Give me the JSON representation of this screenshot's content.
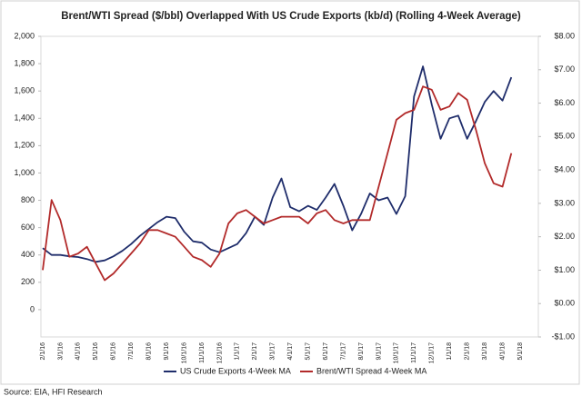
{
  "chart_data": {
    "type": "line",
    "title": "Brent/WTI Spread ($/bbl) Overlapped With US Crude Exports (kb/d) (Rolling 4-Week Average)",
    "source": "Source: EIA, HFI Research",
    "categories": [
      "2/1/16",
      null,
      "3/1/16",
      null,
      "4/1/16",
      null,
      "5/1/16",
      null,
      "6/1/16",
      null,
      "7/1/16",
      null,
      "8/1/16",
      null,
      "9/1/16",
      null,
      "10/1/16",
      null,
      "11/1/16",
      null,
      "12/1/16",
      null,
      "1/1/17",
      null,
      "2/1/17",
      null,
      "3/1/17",
      null,
      "4/1/17",
      null,
      "5/1/17",
      null,
      "6/1/17",
      null,
      "7/1/17",
      null,
      "8/1/17",
      null,
      "9/1/17",
      null,
      "10/1/17",
      null,
      "11/1/17",
      null,
      "12/1/17",
      null,
      "1/1/18",
      null,
      "2/1/18",
      null,
      "3/1/18",
      null,
      "4/1/18",
      null,
      "5/1/18"
    ],
    "series": [
      {
        "name": "US Crude Exports 4-Week MA",
        "color": "#1f2d6b",
        "axis": "y",
        "values": [
          450,
          400,
          400,
          390,
          385,
          370,
          350,
          360,
          390,
          430,
          480,
          540,
          590,
          640,
          680,
          670,
          570,
          500,
          490,
          440,
          420,
          450,
          480,
          560,
          680,
          620,
          820,
          960,
          750,
          720,
          760,
          730,
          820,
          920,
          760,
          580,
          700,
          850,
          800,
          820,
          700,
          830,
          1560,
          1780,
          1500,
          1250,
          1400,
          1420,
          1250,
          1380,
          1520,
          1600,
          1530,
          1700,
          null
        ]
      },
      {
        "name": "Brent/WTI Spread 4-Week MA",
        "color": "#b22a2a",
        "axis": "y2",
        "values": [
          1.0,
          3.1,
          2.5,
          1.4,
          1.5,
          1.7,
          1.2,
          0.7,
          0.9,
          1.2,
          1.5,
          1.8,
          2.2,
          2.2,
          2.1,
          2.0,
          1.7,
          1.4,
          1.3,
          1.1,
          1.5,
          2.4,
          2.7,
          2.8,
          2.6,
          2.4,
          2.5,
          2.6,
          2.6,
          2.6,
          2.4,
          2.7,
          2.8,
          2.5,
          2.4,
          2.5,
          2.5,
          2.5,
          3.5,
          4.5,
          5.5,
          5.7,
          5.8,
          6.5,
          6.4,
          5.8,
          5.9,
          6.3,
          6.1,
          5.2,
          4.2,
          3.6,
          3.5,
          4.5,
          null
        ]
      }
    ],
    "ylim": [
      -200,
      2000
    ],
    "yticks": [
      0,
      200,
      400,
      600,
      800,
      {
        "value": 1000,
        "label": "1,000"
      },
      {
        "value": 1200,
        "label": "1,200"
      },
      {
        "value": 1400,
        "label": "1,400"
      },
      {
        "value": 1600,
        "label": "1,600"
      },
      {
        "value": 1800,
        "label": "1,800"
      },
      {
        "value": 2000,
        "label": "2,000"
      }
    ],
    "y2lim": [
      -1,
      8
    ],
    "y2ticks": [
      {
        "value": -1,
        "label": "-$1.00"
      },
      {
        "value": 0,
        "label": "$0.00"
      },
      {
        "value": 1,
        "label": "$1.00"
      },
      {
        "value": 2,
        "label": "$2.00"
      },
      {
        "value": 3,
        "label": "$3.00"
      },
      {
        "value": 4,
        "label": "$4.00"
      },
      {
        "value": 5,
        "label": "$5.00"
      },
      {
        "value": 6,
        "label": "$6.00"
      },
      {
        "value": 7,
        "label": "$7.00"
      },
      {
        "value": 8,
        "label": "$8.00"
      }
    ],
    "grid": false,
    "legend": "bottom"
  }
}
